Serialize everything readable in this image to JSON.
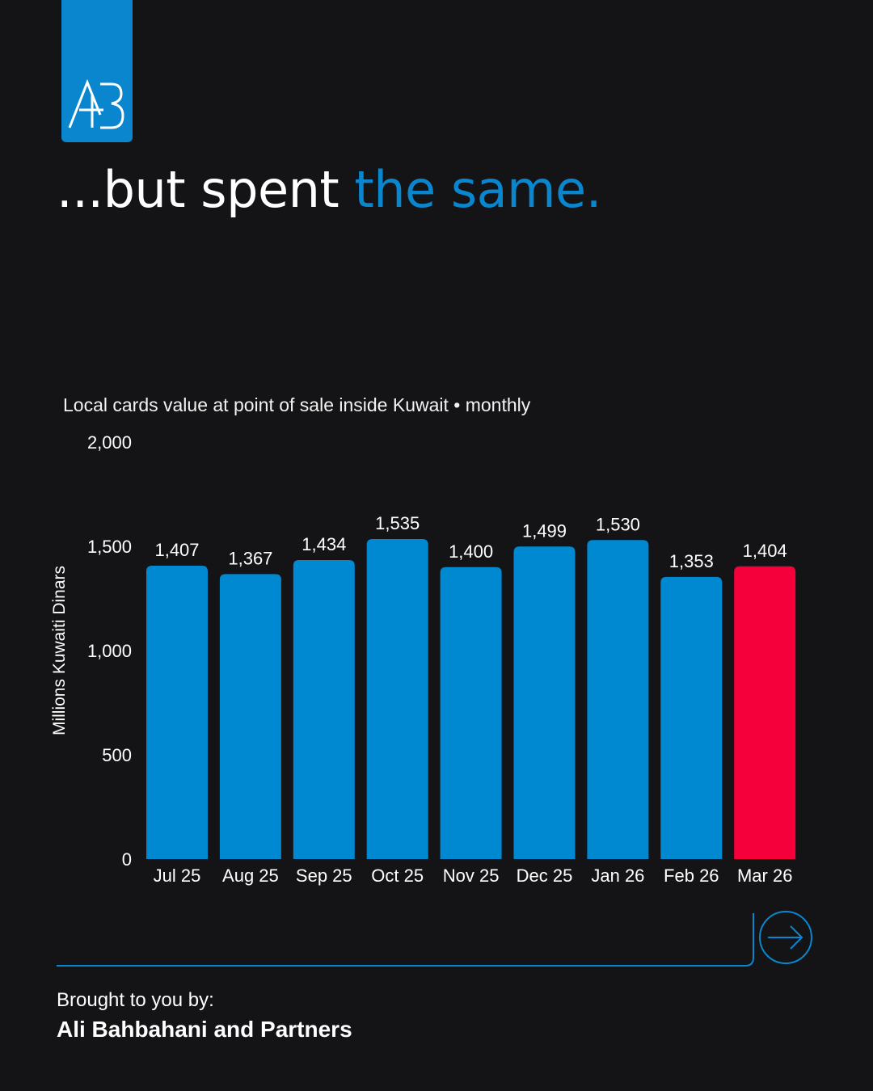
{
  "logo": {
    "text": "AB",
    "bg_color": "#0a86cf"
  },
  "headline": {
    "part1": "...but spent ",
    "part2": "the same.",
    "accent_color": "#0a86cf"
  },
  "chart_data": {
    "type": "bar",
    "subtitle": "Local cards value at point of sale inside Kuwait • monthly",
    "ylabel": "Millions Kuwaiti Dinars",
    "xlabel": "",
    "ylim": [
      0,
      2000
    ],
    "yticks": [
      0,
      500,
      1000,
      1500,
      2000
    ],
    "ytick_labels": [
      "0",
      "500",
      "1,000",
      "1,500",
      "2,000"
    ],
    "categories": [
      "Jul 25",
      "Aug 25",
      "Sep 25",
      "Oct 25",
      "Nov 25",
      "Dec 25",
      "Jan 26",
      "Feb 26",
      "Mar 26"
    ],
    "values": [
      1407,
      1367,
      1434,
      1535,
      1400,
      1499,
      1530,
      1353,
      1404
    ],
    "value_labels": [
      "1,407",
      "1,367",
      "1,434",
      "1,535",
      "1,400",
      "1,499",
      "1,530",
      "1,353",
      "1,404"
    ],
    "colors": {
      "default": "#0088d1",
      "highlight": "#f5003a"
    },
    "highlight_index": 8,
    "grid": false,
    "legend": "none"
  },
  "navigation": {
    "next_icon": "arrow-right-icon",
    "accent_color": "#0a86cf"
  },
  "footer": {
    "brought_label": "Brought to you by:",
    "company": "Ali Bahbahani and Partners"
  }
}
